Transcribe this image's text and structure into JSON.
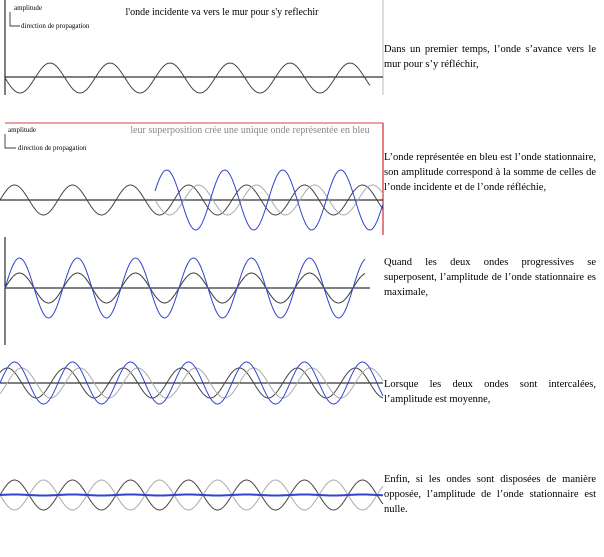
{
  "panels": [
    {
      "amplitude_label": "amplitude",
      "direction_label": "direction de propagation",
      "title": "l'onde incidente va vers le mur pour s'y reflechir",
      "caption": "Dans un premier temps, l’onde s’avance vers le mur pour s’y réfléchir,"
    },
    {
      "amplitude_label": "amplitude",
      "direction_label": "direction de propagation",
      "title": "leur superposition crée une unique onde représentée en bleu",
      "caption": "L’onde représentée en bleu est l’onde stationnaire, son amplitude correspond à la somme de celles de l’onde incidente et de l’onde réfléchie,"
    },
    {
      "caption": "Quand les deux ondes progressives se superposent, l’amplitude de l’onde stationnaire es maximale,"
    },
    {
      "caption": "Lorsque les deux ondes sont intercalées, l’amplitude est moyenne,"
    },
    {
      "caption": "Enfin, si les ondes sont disposées de manière opposée, l’amplitude de l’onde stationnaire est nulle."
    }
  ]
}
